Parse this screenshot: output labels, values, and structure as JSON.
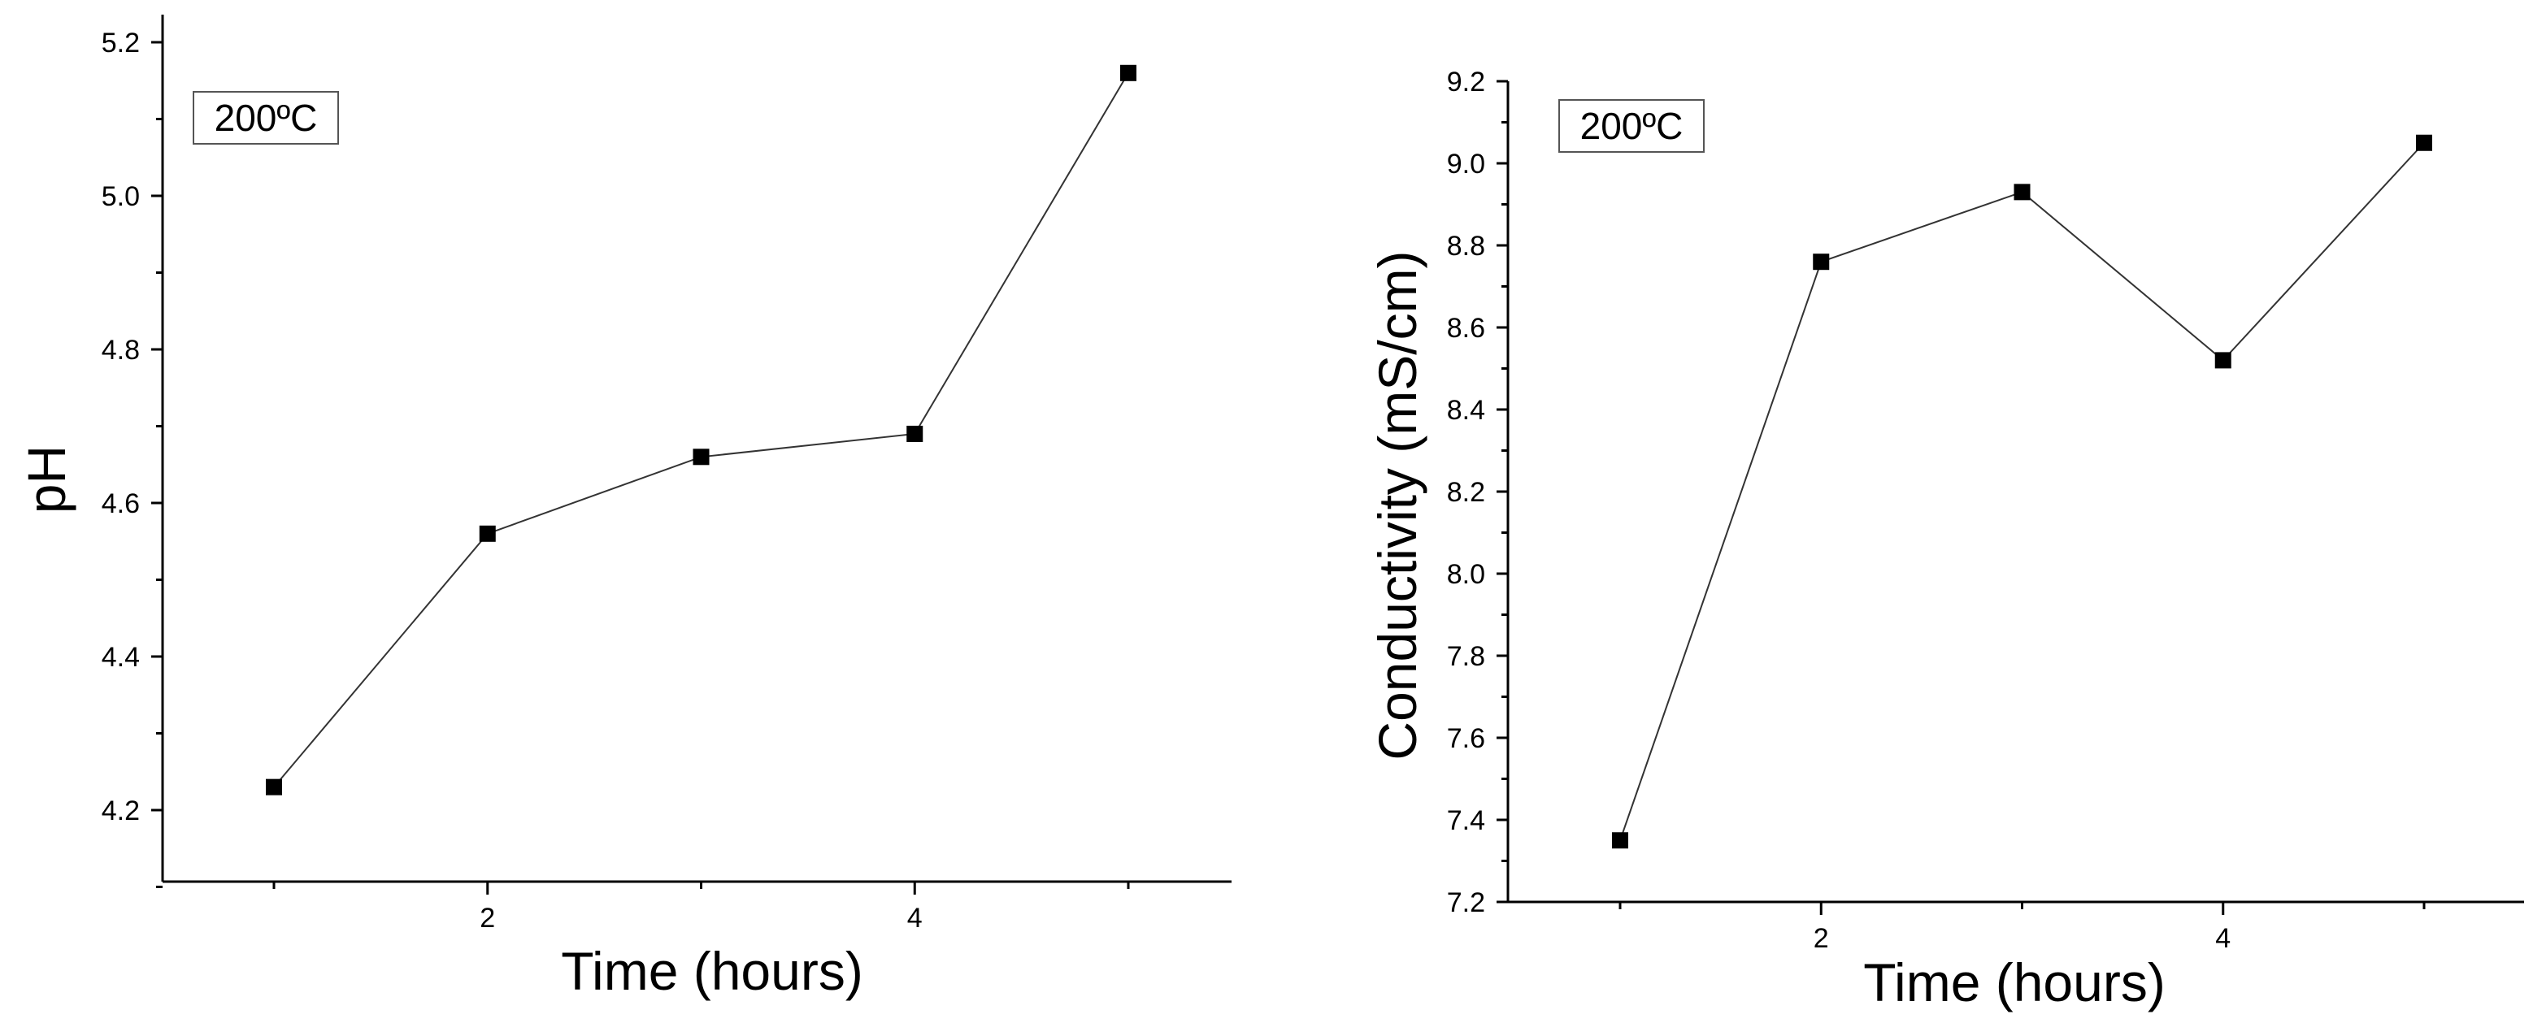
{
  "chart_data": [
    {
      "type": "line",
      "xlabel": "Time (hours)",
      "ylabel": "pH",
      "annotation": "200ºC",
      "xlim": [
        0.5,
        5.5
      ],
      "ylim": [
        4.1,
        5.32
      ],
      "x_ticks": [
        2,
        4
      ],
      "y_ticks": [
        4.2,
        4.4,
        4.6,
        4.8,
        5.0,
        5.2
      ],
      "y_tick_labels": [
        "4.2",
        "4.4",
        "4.6",
        "4.8",
        "5.0",
        "5.2"
      ],
      "x": [
        1,
        2,
        3,
        4,
        5
      ],
      "series": [
        {
          "values": [
            4.23,
            4.56,
            4.66,
            4.69,
            5.16
          ]
        }
      ],
      "grid": false,
      "marker": "square",
      "color": "#000000"
    },
    {
      "type": "line",
      "xlabel": "Time (hours)",
      "ylabel": "Conductivity (mS/cm)",
      "annotation": "200ºC",
      "xlim": [
        0.5,
        5.5
      ],
      "ylim": [
        7.2,
        9.2
      ],
      "x_ticks": [
        2,
        4
      ],
      "y_ticks": [
        7.2,
        7.4,
        7.6,
        7.8,
        8.0,
        8.2,
        8.4,
        8.6,
        8.8,
        9.0,
        9.2
      ],
      "y_tick_labels": [
        "7.2",
        "7.4",
        "7.6",
        "7.8",
        "8.0",
        "8.2",
        "8.4",
        "8.6",
        "8.8",
        "9.0",
        "9.2"
      ],
      "x": [
        1,
        2,
        3,
        4,
        5
      ],
      "series": [
        {
          "values": [
            7.35,
            8.76,
            8.93,
            8.52,
            9.05
          ]
        }
      ],
      "grid": false,
      "marker": "square",
      "color": "#000000"
    }
  ]
}
